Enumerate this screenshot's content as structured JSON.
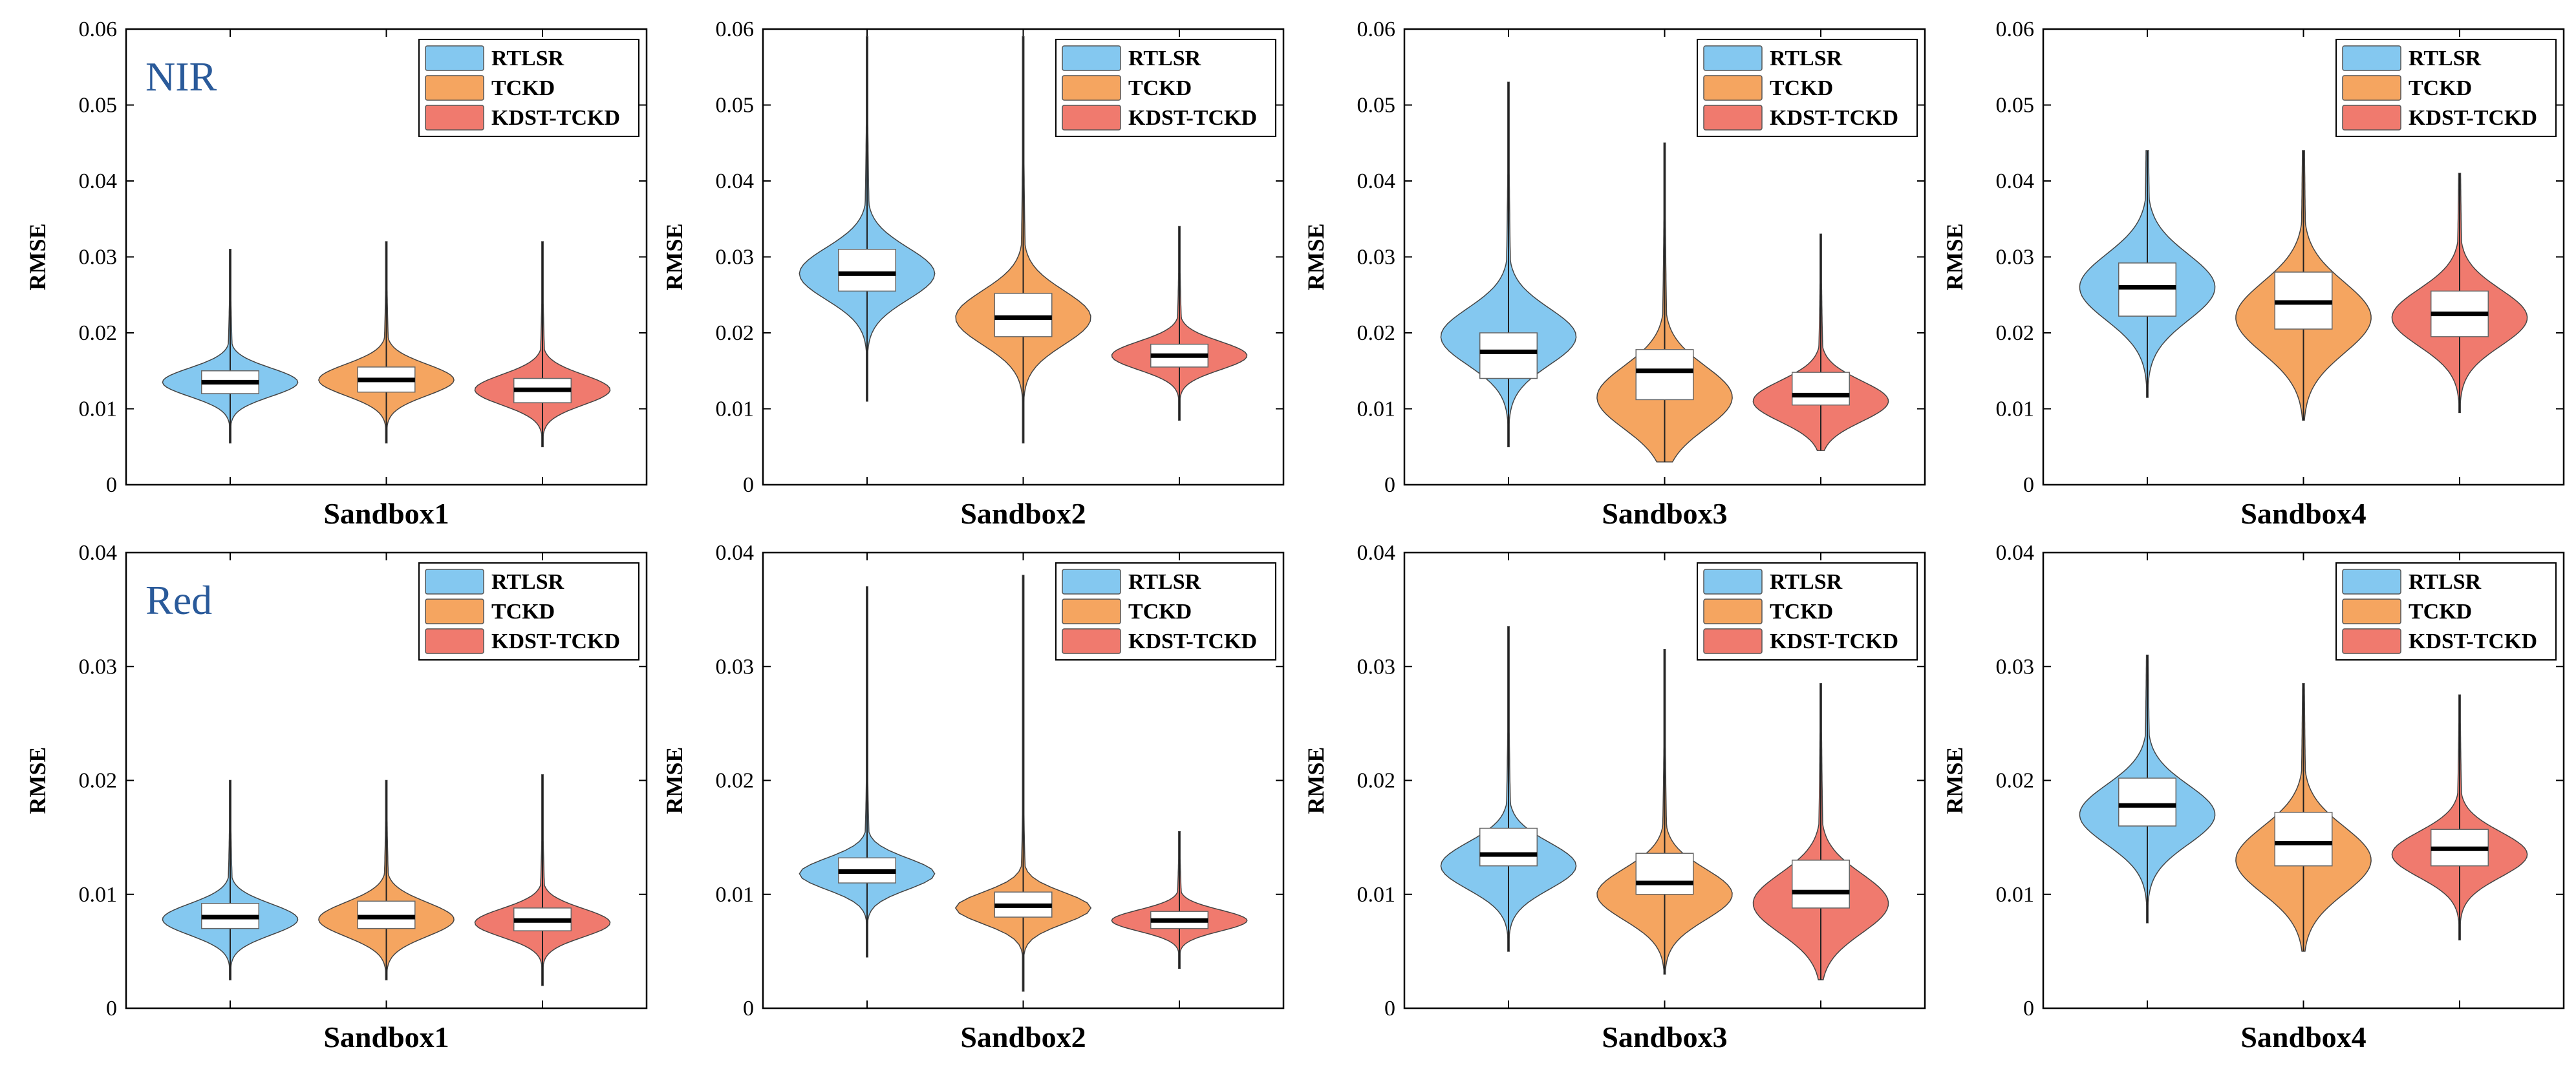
{
  "figure": {
    "rows": [
      {
        "band_label": "NIR",
        "ylim": [
          0,
          0.06
        ],
        "yticks": [
          "0",
          "0.01",
          "0.02",
          "0.03",
          "0.04",
          "0.05",
          "0.06"
        ]
      },
      {
        "band_label": "Red",
        "ylim": [
          0,
          0.04
        ],
        "yticks": [
          "0",
          "0.01",
          "0.02",
          "0.03",
          "0.04"
        ]
      }
    ],
    "ylabel": "RMSE",
    "legend": [
      "RTLSR",
      "TCKD",
      "KDST-TCKD"
    ],
    "colors": {
      "RTLSR": "#84c8f0",
      "TCKD": "#f5a560",
      "KDST-TCKD": "#f07a6e"
    }
  },
  "chart_data": [
    {
      "type": "violin",
      "row": 0,
      "xlabel": "Sandbox1",
      "ylabel": "RMSE",
      "ylim": [
        0,
        0.06
      ],
      "band": "NIR",
      "series": [
        {
          "name": "RTLSR",
          "median": 0.0135,
          "q1": 0.012,
          "q3": 0.015,
          "min": 0.0055,
          "max": 0.031,
          "mode": 0.0135
        },
        {
          "name": "TCKD",
          "median": 0.0138,
          "q1": 0.0122,
          "q3": 0.0155,
          "min": 0.0055,
          "max": 0.032,
          "mode": 0.0138
        },
        {
          "name": "KDST-TCKD",
          "median": 0.0125,
          "q1": 0.0108,
          "q3": 0.014,
          "min": 0.005,
          "max": 0.032,
          "mode": 0.0125
        }
      ]
    },
    {
      "type": "violin",
      "row": 0,
      "xlabel": "Sandbox2",
      "ylabel": "RMSE",
      "ylim": [
        0,
        0.06
      ],
      "band": "NIR",
      "series": [
        {
          "name": "RTLSR",
          "median": 0.0278,
          "q1": 0.0255,
          "q3": 0.031,
          "min": 0.011,
          "max": 0.059,
          "mode": 0.0278
        },
        {
          "name": "TCKD",
          "median": 0.022,
          "q1": 0.0195,
          "q3": 0.0252,
          "min": 0.0055,
          "max": 0.059,
          "mode": 0.022
        },
        {
          "name": "KDST-TCKD",
          "median": 0.017,
          "q1": 0.0155,
          "q3": 0.0185,
          "min": 0.0085,
          "max": 0.034,
          "mode": 0.017
        }
      ]
    },
    {
      "type": "violin",
      "row": 0,
      "xlabel": "Sandbox3",
      "ylabel": "RMSE",
      "ylim": [
        0,
        0.06
      ],
      "band": "NIR",
      "series": [
        {
          "name": "RTLSR",
          "median": 0.0175,
          "q1": 0.014,
          "q3": 0.02,
          "min": 0.005,
          "max": 0.053,
          "mode": 0.0195
        },
        {
          "name": "TCKD",
          "median": 0.015,
          "q1": 0.0112,
          "q3": 0.0178,
          "min": 0.003,
          "max": 0.045,
          "mode": 0.0115
        },
        {
          "name": "KDST-TCKD",
          "median": 0.0118,
          "q1": 0.0105,
          "q3": 0.0148,
          "min": 0.0045,
          "max": 0.033,
          "mode": 0.011
        }
      ]
    },
    {
      "type": "violin",
      "row": 0,
      "xlabel": "Sandbox4",
      "ylabel": "RMSE",
      "ylim": [
        0,
        0.06
      ],
      "band": "NIR",
      "series": [
        {
          "name": "RTLSR",
          "median": 0.026,
          "q1": 0.0222,
          "q3": 0.0292,
          "min": 0.0115,
          "max": 0.044,
          "mode": 0.026
        },
        {
          "name": "TCKD",
          "median": 0.024,
          "q1": 0.0205,
          "q3": 0.028,
          "min": 0.0085,
          "max": 0.044,
          "mode": 0.022
        },
        {
          "name": "KDST-TCKD",
          "median": 0.0225,
          "q1": 0.0195,
          "q3": 0.0255,
          "min": 0.0095,
          "max": 0.041,
          "mode": 0.022
        }
      ]
    },
    {
      "type": "violin",
      "row": 1,
      "xlabel": "Sandbox1",
      "ylabel": "RMSE",
      "ylim": [
        0,
        0.04
      ],
      "band": "Red",
      "series": [
        {
          "name": "RTLSR",
          "median": 0.008,
          "q1": 0.007,
          "q3": 0.0092,
          "min": 0.0025,
          "max": 0.02,
          "mode": 0.0078
        },
        {
          "name": "TCKD",
          "median": 0.008,
          "q1": 0.007,
          "q3": 0.0094,
          "min": 0.0025,
          "max": 0.02,
          "mode": 0.0078
        },
        {
          "name": "KDST-TCKD",
          "median": 0.0077,
          "q1": 0.0068,
          "q3": 0.0088,
          "min": 0.002,
          "max": 0.0205,
          "mode": 0.0075
        }
      ]
    },
    {
      "type": "violin",
      "row": 1,
      "xlabel": "Sandbox2",
      "ylabel": "RMSE",
      "ylim": [
        0,
        0.04
      ],
      "band": "Red",
      "series": [
        {
          "name": "RTLSR",
          "median": 0.012,
          "q1": 0.011,
          "q3": 0.0132,
          "min": 0.0045,
          "max": 0.037,
          "mode": 0.0118
        },
        {
          "name": "TCKD",
          "median": 0.009,
          "q1": 0.008,
          "q3": 0.0102,
          "min": 0.0015,
          "max": 0.038,
          "mode": 0.0088
        },
        {
          "name": "KDST-TCKD",
          "median": 0.0077,
          "q1": 0.007,
          "q3": 0.0085,
          "min": 0.0035,
          "max": 0.0155,
          "mode": 0.0077
        }
      ]
    },
    {
      "type": "violin",
      "row": 1,
      "xlabel": "Sandbox3",
      "ylabel": "RMSE",
      "ylim": [
        0,
        0.04
      ],
      "band": "Red",
      "series": [
        {
          "name": "RTLSR",
          "median": 0.0135,
          "q1": 0.0125,
          "q3": 0.0158,
          "min": 0.005,
          "max": 0.0335,
          "mode": 0.0125
        },
        {
          "name": "TCKD",
          "median": 0.011,
          "q1": 0.01,
          "q3": 0.0136,
          "min": 0.003,
          "max": 0.0315,
          "mode": 0.01
        },
        {
          "name": "KDST-TCKD",
          "median": 0.0102,
          "q1": 0.0088,
          "q3": 0.013,
          "min": 0.0025,
          "max": 0.0285,
          "mode": 0.0092
        }
      ]
    },
    {
      "type": "violin",
      "row": 1,
      "xlabel": "Sandbox4",
      "ylabel": "RMSE",
      "ylim": [
        0,
        0.04
      ],
      "band": "Red",
      "series": [
        {
          "name": "RTLSR",
          "median": 0.0178,
          "q1": 0.016,
          "q3": 0.0202,
          "min": 0.0075,
          "max": 0.031,
          "mode": 0.017
        },
        {
          "name": "TCKD",
          "median": 0.0145,
          "q1": 0.0125,
          "q3": 0.0172,
          "min": 0.005,
          "max": 0.0285,
          "mode": 0.013
        },
        {
          "name": "KDST-TCKD",
          "median": 0.014,
          "q1": 0.0125,
          "q3": 0.0157,
          "min": 0.006,
          "max": 0.0275,
          "mode": 0.0135
        }
      ]
    }
  ]
}
